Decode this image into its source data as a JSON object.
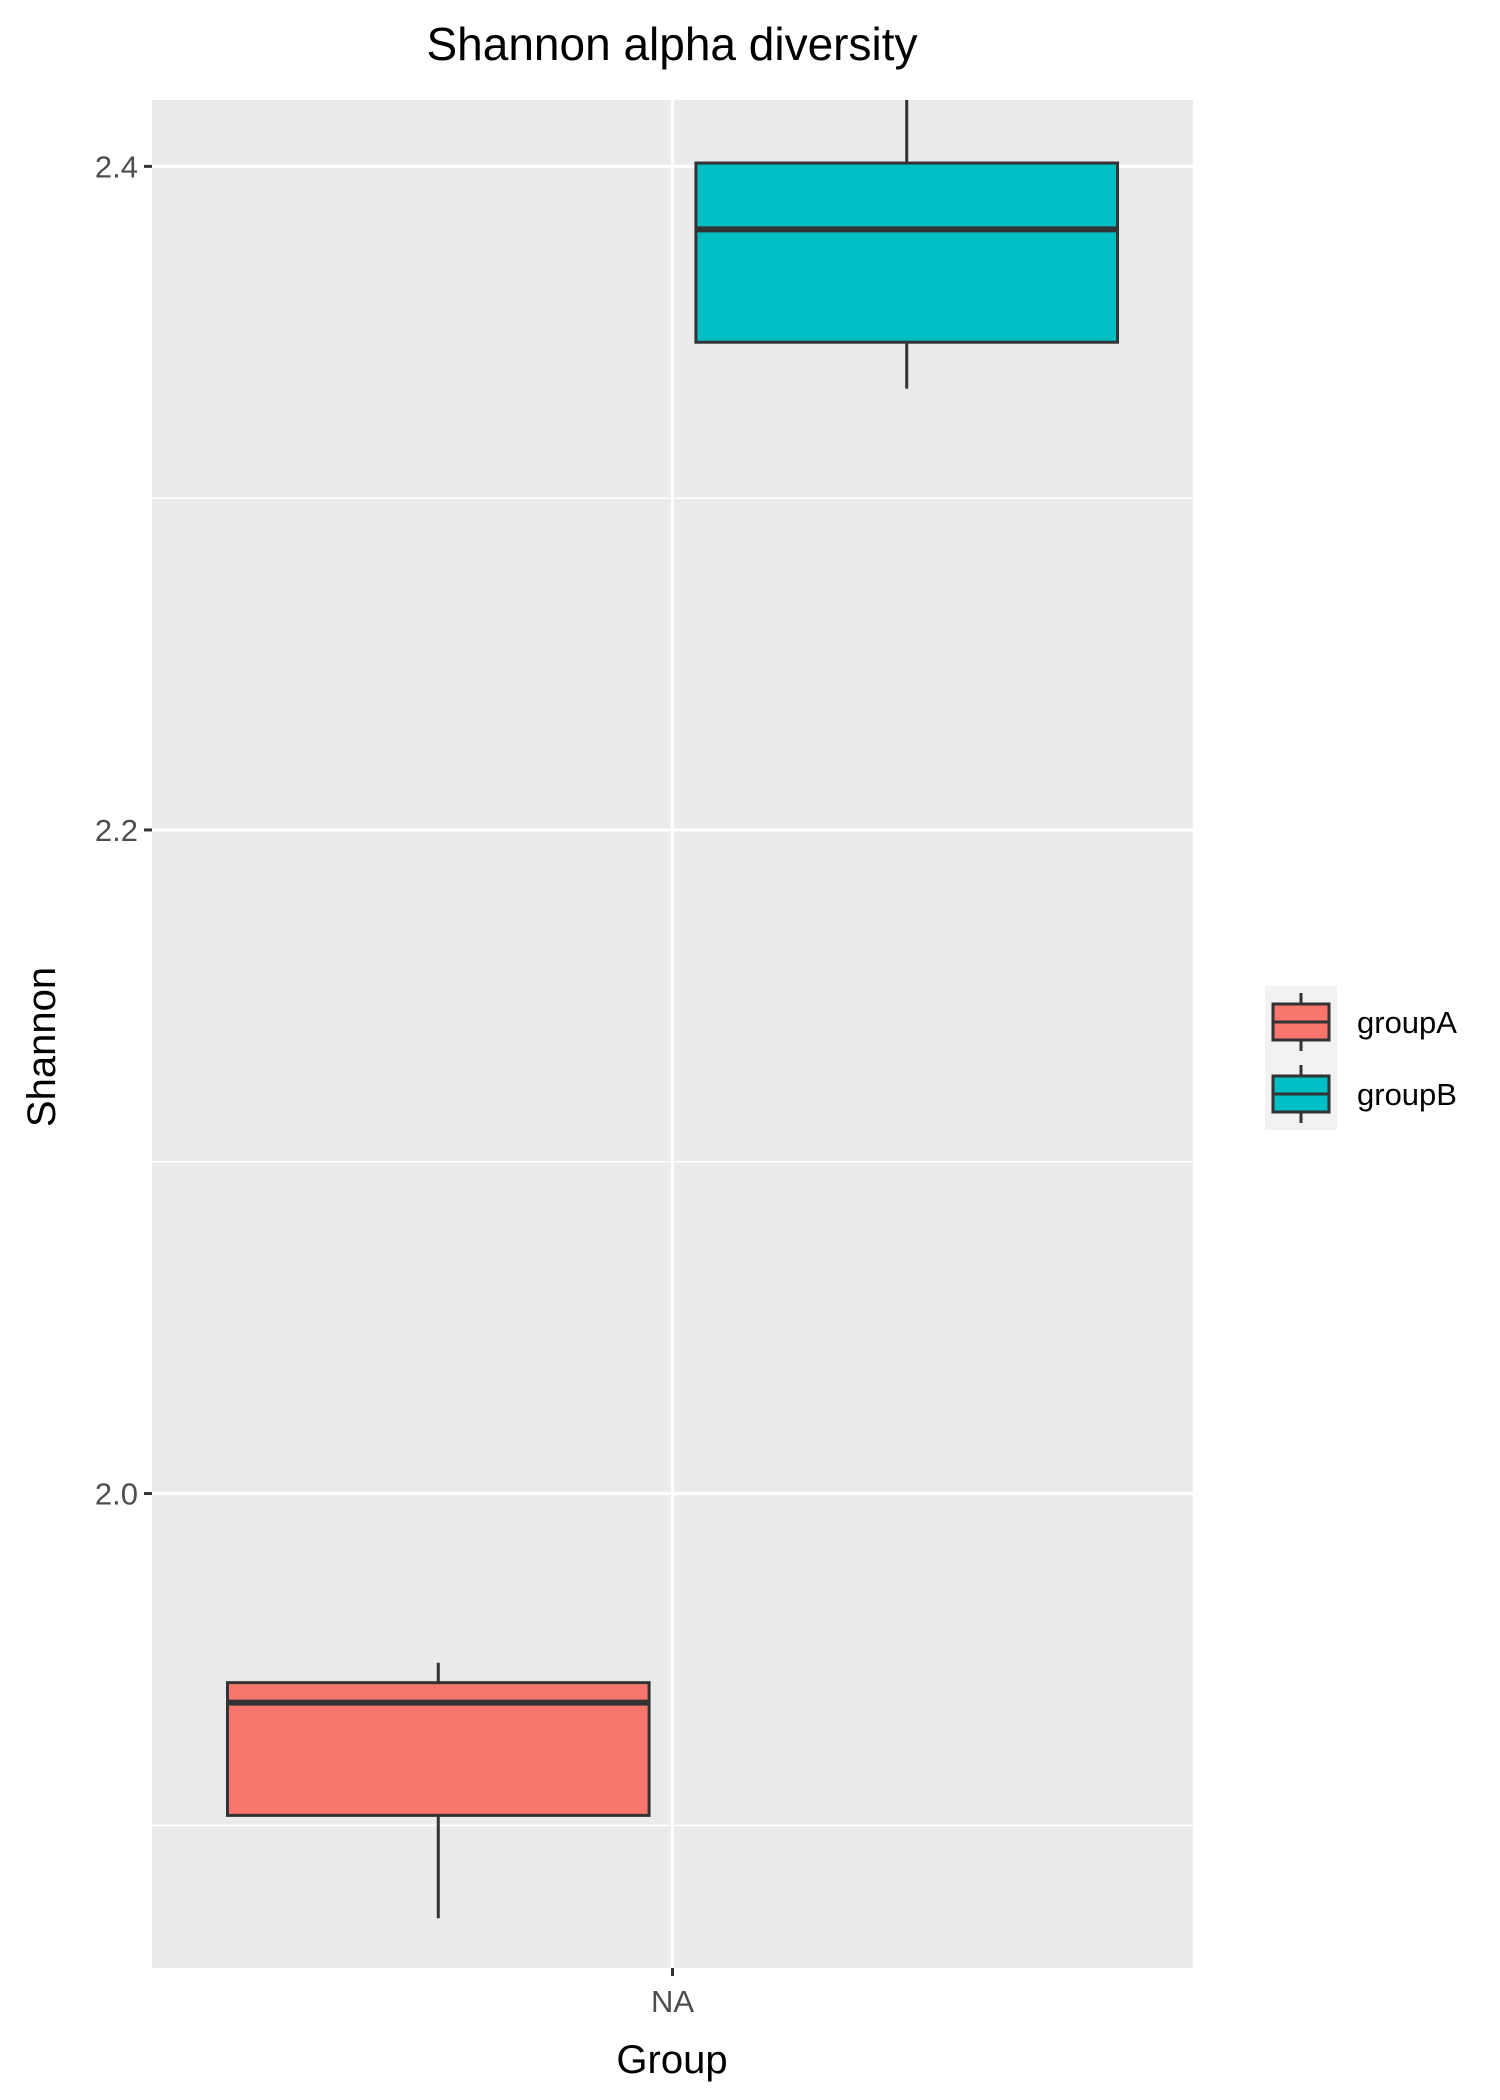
{
  "chart_data": {
    "type": "boxplot",
    "title": "Shannon alpha diversity",
    "xlabel": "Group",
    "ylabel": "Shannon",
    "categories": [
      "NA"
    ],
    "ylim": [
      1.857,
      2.42
    ],
    "yticks": [
      2.0,
      2.2,
      2.4
    ],
    "ytick_labels": [
      "2.0",
      "2.2",
      "2.4"
    ],
    "grid": true,
    "panel_background": "#ebebeb",
    "grid_color": "#ffffff",
    "legend": {
      "position": "right",
      "title": ""
    },
    "series": [
      {
        "name": "groupA",
        "color": "#f8766d",
        "category": "NA",
        "min": 1.872,
        "q1": 1.903,
        "median": 1.937,
        "q3": 1.943,
        "max": 1.949
      },
      {
        "name": "groupB",
        "color": "#00bfc4",
        "category": "NA",
        "min": 2.333,
        "q1": 2.347,
        "median": 2.381,
        "q3": 2.401,
        "max": 2.42
      }
    ]
  }
}
